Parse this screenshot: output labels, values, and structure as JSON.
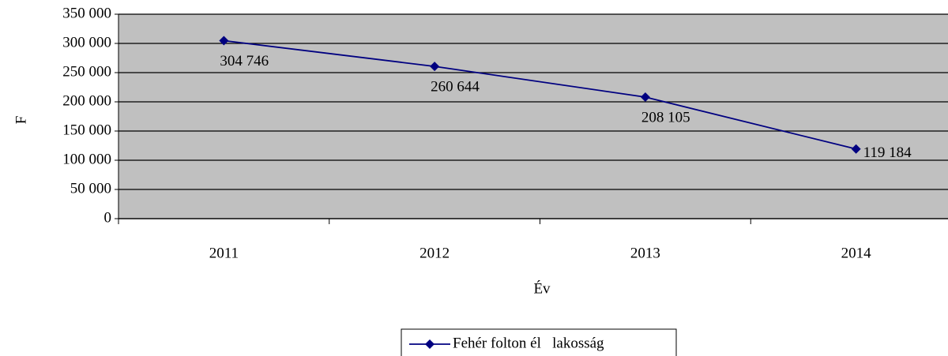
{
  "chart_data": {
    "type": "line",
    "xlabel": "Év",
    "ylabel": "F",
    "categories": [
      "2011",
      "2012",
      "2013",
      "2014"
    ],
    "series": [
      {
        "name": "Fehér folton él   lakosság",
        "color": "#000080",
        "values": [
          304746,
          260644,
          208105,
          119184
        ],
        "value_labels": [
          "304 746",
          "260 644",
          "208 105",
          "119 184"
        ]
      }
    ],
    "ylim": [
      0,
      350000
    ],
    "yticks": [
      0,
      {
        "value": 50000,
        "label": "50 000"
      },
      {
        "value": 100000,
        "label": "100 000"
      },
      {
        "value": 150000,
        "label": "150 000"
      },
      {
        "value": 200000,
        "label": "200 000"
      },
      {
        "value": 250000,
        "label": "250 000"
      },
      {
        "value": 300000,
        "label": "300 000"
      },
      {
        "value": 350000,
        "label": "350 000"
      }
    ],
    "grid": true,
    "legend": "bottom"
  }
}
